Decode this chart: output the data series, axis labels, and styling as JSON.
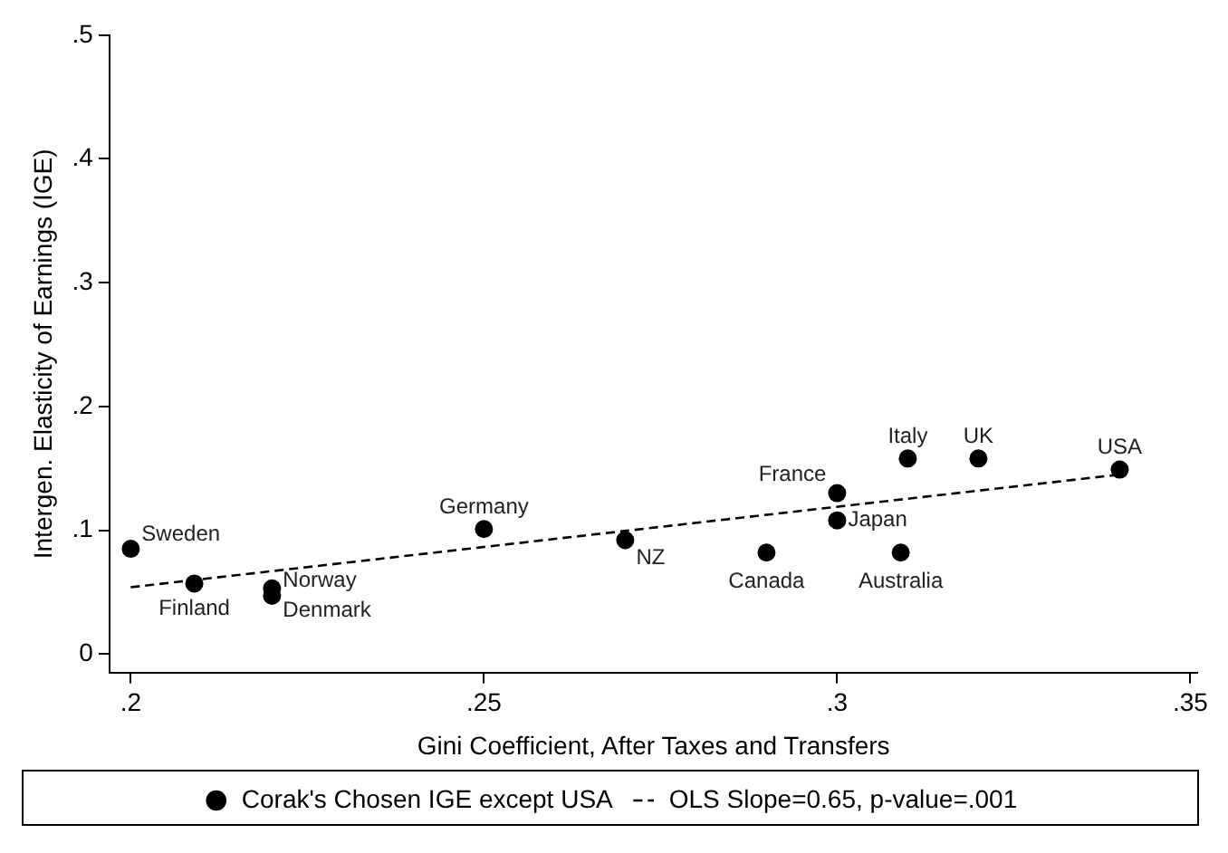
{
  "chart_data": {
    "type": "scatter",
    "xlabel": "Gini Coefficient, After Taxes and Transfers",
    "ylabel": "Intergen. Elasticity of Earnings (IGE)",
    "xlim": [
      0.197,
      0.351
    ],
    "ylim": [
      -0.015,
      0.5
    ],
    "xticks": [
      {
        "value": 0.2,
        "label": ".2"
      },
      {
        "value": 0.25,
        "label": ".25"
      },
      {
        "value": 0.3,
        "label": ".3"
      },
      {
        "value": 0.35,
        "label": ".35"
      }
    ],
    "yticks": [
      0,
      {
        "value": 0.1,
        "label": ".1"
      },
      {
        "value": 0.2,
        "label": ".2"
      },
      {
        "value": 0.3,
        "label": ".3"
      },
      {
        "value": 0.4,
        "label": ".4"
      },
      {
        "value": 0.5,
        "label": ".5"
      }
    ],
    "grid": false,
    "legend": "bottom",
    "series": [
      {
        "name": "Corak's Chosen IGE except USA",
        "type": "scatter",
        "color": "#000000",
        "marker": "circle",
        "x": [
          0.2,
          0.209,
          0.22,
          0.22,
          0.25,
          0.27,
          0.29,
          0.3,
          0.3,
          0.309,
          0.31,
          0.32,
          0.34
        ],
        "values": [
          0.085,
          0.057,
          0.053,
          0.047,
          0.101,
          0.092,
          0.082,
          0.13,
          0.108,
          0.082,
          0.158,
          0.158,
          0.149
        ]
      },
      {
        "name": "OLS Slope=0.65, p-value=.001",
        "type": "line",
        "color": "#000000",
        "marker": "none",
        "line_style": "dashed",
        "x": [
          0.2,
          0.34
        ],
        "values": [
          0.054,
          0.145
        ]
      }
    ],
    "annotations": [
      {
        "text": "Sweden",
        "x": 0.2,
        "y": 0.085
      },
      {
        "text": "Finland",
        "x": 0.209,
        "y": 0.057
      },
      {
        "text": "Norway",
        "x": 0.22,
        "y": 0.053
      },
      {
        "text": "Denmark",
        "x": 0.22,
        "y": 0.047
      },
      {
        "text": "Germany",
        "x": 0.25,
        "y": 0.101
      },
      {
        "text": "NZ",
        "x": 0.27,
        "y": 0.092
      },
      {
        "text": "Canada",
        "x": 0.29,
        "y": 0.082
      },
      {
        "text": "France",
        "x": 0.3,
        "y": 0.13
      },
      {
        "text": "Japan",
        "x": 0.3,
        "y": 0.108
      },
      {
        "text": "Australia",
        "x": 0.309,
        "y": 0.082
      },
      {
        "text": "Italy",
        "x": 0.31,
        "y": 0.158
      },
      {
        "text": "UK",
        "x": 0.32,
        "y": 0.158
      },
      {
        "text": "USA",
        "x": 0.34,
        "y": 0.149
      }
    ]
  }
}
